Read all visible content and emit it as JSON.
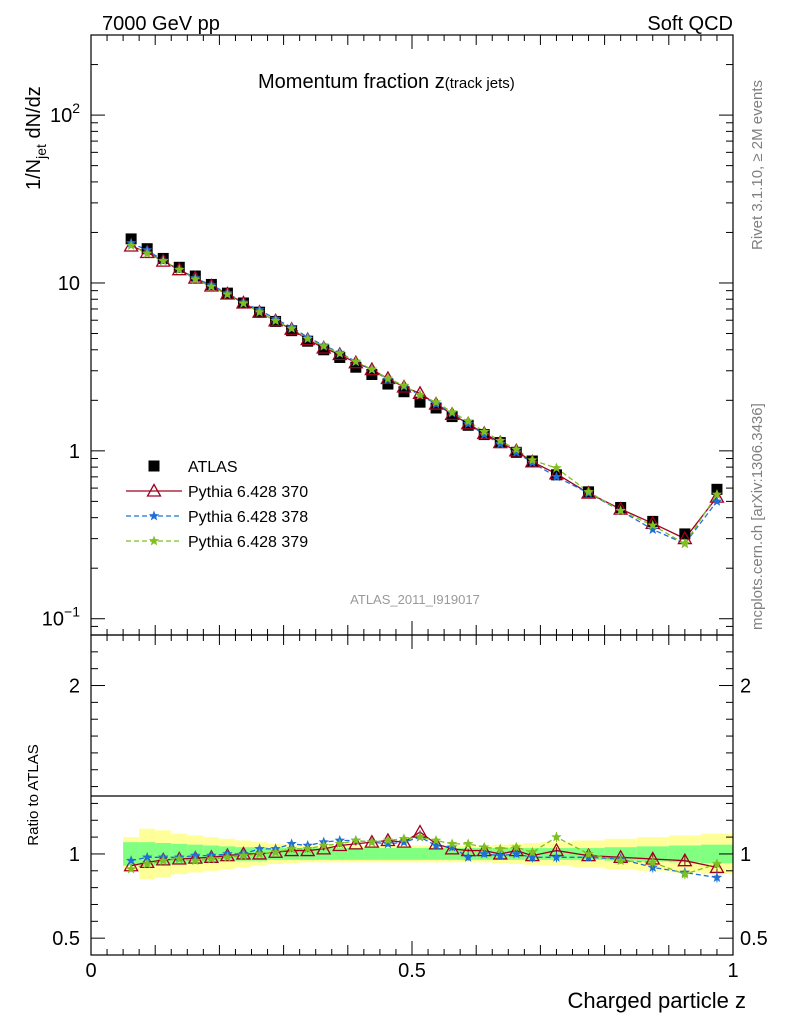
{
  "header": {
    "left": "7000 GeV pp",
    "right": "Soft QCD"
  },
  "side_labels": {
    "rivet": "Rivet 3.1.10, ≥ 2M events",
    "mcplots": "mcplots.cern.ch [arXiv:1306.3436]"
  },
  "chart_data": [
    {
      "type": "scatter",
      "panel": "main",
      "title_main": "Momentum fraction z",
      "title_sub": "(track jets)",
      "analysis_label": "ATLAS_2011_I919017",
      "ylabel_main": "1/N",
      "ylabel_sub": "jet",
      "ylabel_tail": " dN/dz",
      "yscale": "log",
      "ylim": [
        0.08,
        300
      ],
      "xlim": [
        0,
        1
      ],
      "yticks": [
        {
          "v": 0.1,
          "base": "10",
          "exp": "−1"
        },
        {
          "v": 1,
          "base": "1",
          "exp": ""
        },
        {
          "v": 10,
          "base": "10",
          "exp": ""
        },
        {
          "v": 100,
          "base": "10",
          "exp": "2"
        }
      ],
      "x": [
        0.0625,
        0.0875,
        0.1125,
        0.1375,
        0.1625,
        0.1875,
        0.2125,
        0.2375,
        0.2625,
        0.2875,
        0.3125,
        0.3375,
        0.3625,
        0.3875,
        0.4125,
        0.4375,
        0.4625,
        0.4875,
        0.5125,
        0.5375,
        0.5625,
        0.5875,
        0.6125,
        0.6375,
        0.6625,
        0.6875,
        0.725,
        0.775,
        0.825,
        0.875,
        0.925,
        0.975
      ],
      "series": [
        {
          "name": "ATLAS",
          "color": "#000000",
          "marker": "square",
          "values": [
            18.3,
            16.0,
            14.0,
            12.4,
            11.0,
            9.8,
            8.7,
            7.6,
            6.7,
            5.9,
            5.2,
            4.5,
            4.0,
            3.6,
            3.15,
            2.85,
            2.5,
            2.25,
            1.95,
            1.8,
            1.6,
            1.42,
            1.25,
            1.12,
            0.98,
            0.87,
            0.72,
            0.57,
            0.46,
            0.38,
            0.32,
            0.59
          ]
        },
        {
          "name": "Pythia 6.428 370",
          "color": "#a00020",
          "marker": "triangle",
          "dash": "",
          "values": [
            16.6,
            15.2,
            13.5,
            12.0,
            10.7,
            9.6,
            8.6,
            7.6,
            6.7,
            5.95,
            5.3,
            4.6,
            4.1,
            3.75,
            3.35,
            3.05,
            2.7,
            2.4,
            2.2,
            1.9,
            1.65,
            1.45,
            1.27,
            1.12,
            1.0,
            0.86,
            0.73,
            0.56,
            0.45,
            0.37,
            0.3,
            0.53
          ]
        },
        {
          "name": "Pythia 6.428 378",
          "color": "#1f6fd6",
          "marker": "star",
          "dash": "5,3",
          "values": [
            17.3,
            15.7,
            13.6,
            12.0,
            10.7,
            9.7,
            8.7,
            7.65,
            6.9,
            6.1,
            5.45,
            4.75,
            4.25,
            3.85,
            3.4,
            3.05,
            2.65,
            2.42,
            2.15,
            1.9,
            1.68,
            1.45,
            1.25,
            1.1,
            0.98,
            0.85,
            0.7,
            0.56,
            0.44,
            0.34,
            0.28,
            0.5
          ]
        },
        {
          "name": "Pythia 6.428 379",
          "color": "#7fbf1f",
          "marker": "star",
          "dash": "5,3",
          "values": [
            16.7,
            15.0,
            13.5,
            12.0,
            10.5,
            9.5,
            8.55,
            7.55,
            6.7,
            5.95,
            5.35,
            4.65,
            4.2,
            3.8,
            3.4,
            3.05,
            2.7,
            2.45,
            2.15,
            1.95,
            1.7,
            1.5,
            1.3,
            1.15,
            1.02,
            0.88,
            0.79,
            0.57,
            0.44,
            0.36,
            0.28,
            0.55
          ]
        }
      ],
      "legend_position": "lower-left"
    },
    {
      "type": "scatter",
      "panel": "ratio",
      "ylabel": "Ratio to ATLAS",
      "xlabel": "Charged particle z",
      "ylim": [
        0.4,
        2.3
      ],
      "xlim": [
        0,
        1
      ],
      "yticks": [
        {
          "v": 0.5,
          "label": "0.5"
        },
        {
          "v": 1,
          "label": "1"
        },
        {
          "v": 2,
          "label": "2"
        }
      ],
      "xticks": [
        {
          "v": 0,
          "label": "0"
        },
        {
          "v": 0.5,
          "label": "0.5"
        },
        {
          "v": 1,
          "label": "1"
        }
      ],
      "band_edges": [
        0.05,
        0.075,
        0.1,
        0.125,
        0.15,
        0.175,
        0.2,
        0.225,
        0.25,
        0.275,
        0.3,
        0.325,
        0.35,
        0.375,
        0.4,
        0.425,
        0.45,
        0.475,
        0.5,
        0.525,
        0.55,
        0.575,
        0.6,
        0.625,
        0.65,
        0.675,
        0.7,
        0.75,
        0.8,
        0.85,
        0.9,
        0.95,
        1.0
      ],
      "band_inner": [
        0.07,
        0.07,
        0.065,
        0.06,
        0.055,
        0.05,
        0.045,
        0.04,
        0.04,
        0.035,
        0.035,
        0.035,
        0.035,
        0.035,
        0.035,
        0.035,
        0.035,
        0.035,
        0.035,
        0.035,
        0.035,
        0.035,
        0.035,
        0.035,
        0.035,
        0.035,
        0.035,
        0.035,
        0.04,
        0.045,
        0.05,
        0.055
      ],
      "band_outer": [
        0.1,
        0.15,
        0.14,
        0.12,
        0.11,
        0.1,
        0.09,
        0.08,
        0.07,
        0.06,
        0.055,
        0.05,
        0.05,
        0.05,
        0.05,
        0.05,
        0.05,
        0.05,
        0.05,
        0.05,
        0.05,
        0.05,
        0.05,
        0.055,
        0.06,
        0.065,
        0.07,
        0.08,
        0.09,
        0.1,
        0.11,
        0.12
      ],
      "band_inner_color": "#80ff80",
      "band_outer_color": "#ffff99",
      "series": [
        {
          "name": "Pythia 6.428 370",
          "color": "#a00020",
          "marker": "triangle",
          "dash": "",
          "values": [
            0.93,
            0.95,
            0.965,
            0.97,
            0.975,
            0.98,
            0.99,
            1.0,
            1.0,
            1.01,
            1.02,
            1.02,
            1.03,
            1.05,
            1.06,
            1.07,
            1.08,
            1.07,
            1.13,
            1.06,
            1.03,
            1.02,
            1.02,
            1.0,
            1.02,
            0.99,
            1.02,
            0.99,
            0.98,
            0.97,
            0.96,
            0.92
          ],
          "errors": [
            0.01,
            0.01,
            0.01,
            0.01,
            0.01,
            0.01,
            0.01,
            0.01,
            0.01,
            0.01,
            0.01,
            0.01,
            0.01,
            0.01,
            0.01,
            0.01,
            0.01,
            0.01,
            0.01,
            0.01,
            0.01,
            0.01,
            0.01,
            0.01,
            0.02,
            0.02,
            0.02,
            0.02,
            0.02,
            0.03,
            0.03,
            0.03
          ]
        },
        {
          "name": "Pythia 6.428 378",
          "color": "#1f6fd6",
          "marker": "star",
          "dash": "5,3",
          "values": [
            0.96,
            0.98,
            0.98,
            0.98,
            0.99,
            0.99,
            1.0,
            1.0,
            1.03,
            1.03,
            1.06,
            1.05,
            1.07,
            1.08,
            1.08,
            1.07,
            1.06,
            1.07,
            1.1,
            1.05,
            1.04,
            0.98,
            1.0,
            0.99,
            1.0,
            0.98,
            0.98,
            0.98,
            0.97,
            0.92,
            0.89,
            0.86
          ],
          "errors": [
            0.01,
            0.01,
            0.01,
            0.01,
            0.01,
            0.01,
            0.01,
            0.01,
            0.01,
            0.01,
            0.01,
            0.01,
            0.01,
            0.01,
            0.01,
            0.01,
            0.01,
            0.01,
            0.01,
            0.01,
            0.01,
            0.02,
            0.02,
            0.02,
            0.02,
            0.03,
            0.03,
            0.02,
            0.02,
            0.03,
            0.03,
            0.03
          ]
        },
        {
          "name": "Pythia 6.428 379",
          "color": "#7fbf1f",
          "marker": "star",
          "dash": "5,3",
          "values": [
            0.91,
            0.94,
            0.96,
            0.97,
            0.96,
            0.97,
            0.98,
            0.99,
            1.0,
            1.01,
            1.03,
            1.03,
            1.05,
            1.06,
            1.08,
            1.07,
            1.08,
            1.09,
            1.1,
            1.08,
            1.06,
            1.06,
            1.04,
            1.03,
            1.04,
            1.01,
            1.1,
            1.0,
            0.96,
            0.95,
            0.88,
            0.94
          ],
          "errors": [
            0.01,
            0.01,
            0.01,
            0.01,
            0.01,
            0.01,
            0.01,
            0.01,
            0.01,
            0.01,
            0.01,
            0.01,
            0.01,
            0.01,
            0.01,
            0.01,
            0.01,
            0.01,
            0.01,
            0.01,
            0.01,
            0.02,
            0.02,
            0.02,
            0.02,
            0.02,
            0.03,
            0.02,
            0.02,
            0.03,
            0.03,
            0.03
          ]
        }
      ]
    }
  ]
}
